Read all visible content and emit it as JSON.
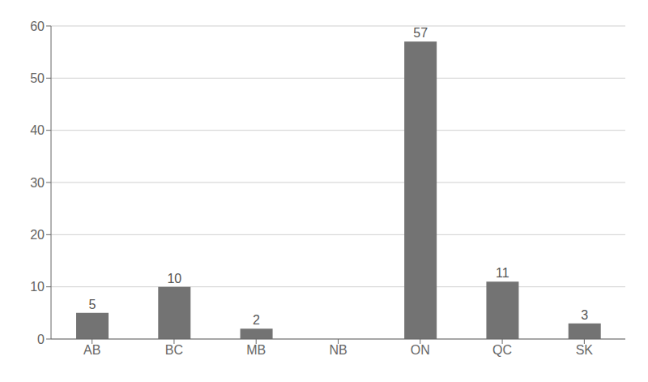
{
  "chart_data": {
    "type": "bar",
    "categories": [
      "AB",
      "BC",
      "MB",
      "NB",
      "ON",
      "QC",
      "SK"
    ],
    "values": [
      5,
      10,
      2,
      0,
      57,
      11,
      3
    ],
    "color": "#737373",
    "ylim": [
      0,
      60
    ],
    "yticks": [
      0,
      10,
      20,
      30,
      40,
      50,
      60
    ],
    "grid": true,
    "data_labels": true
  }
}
